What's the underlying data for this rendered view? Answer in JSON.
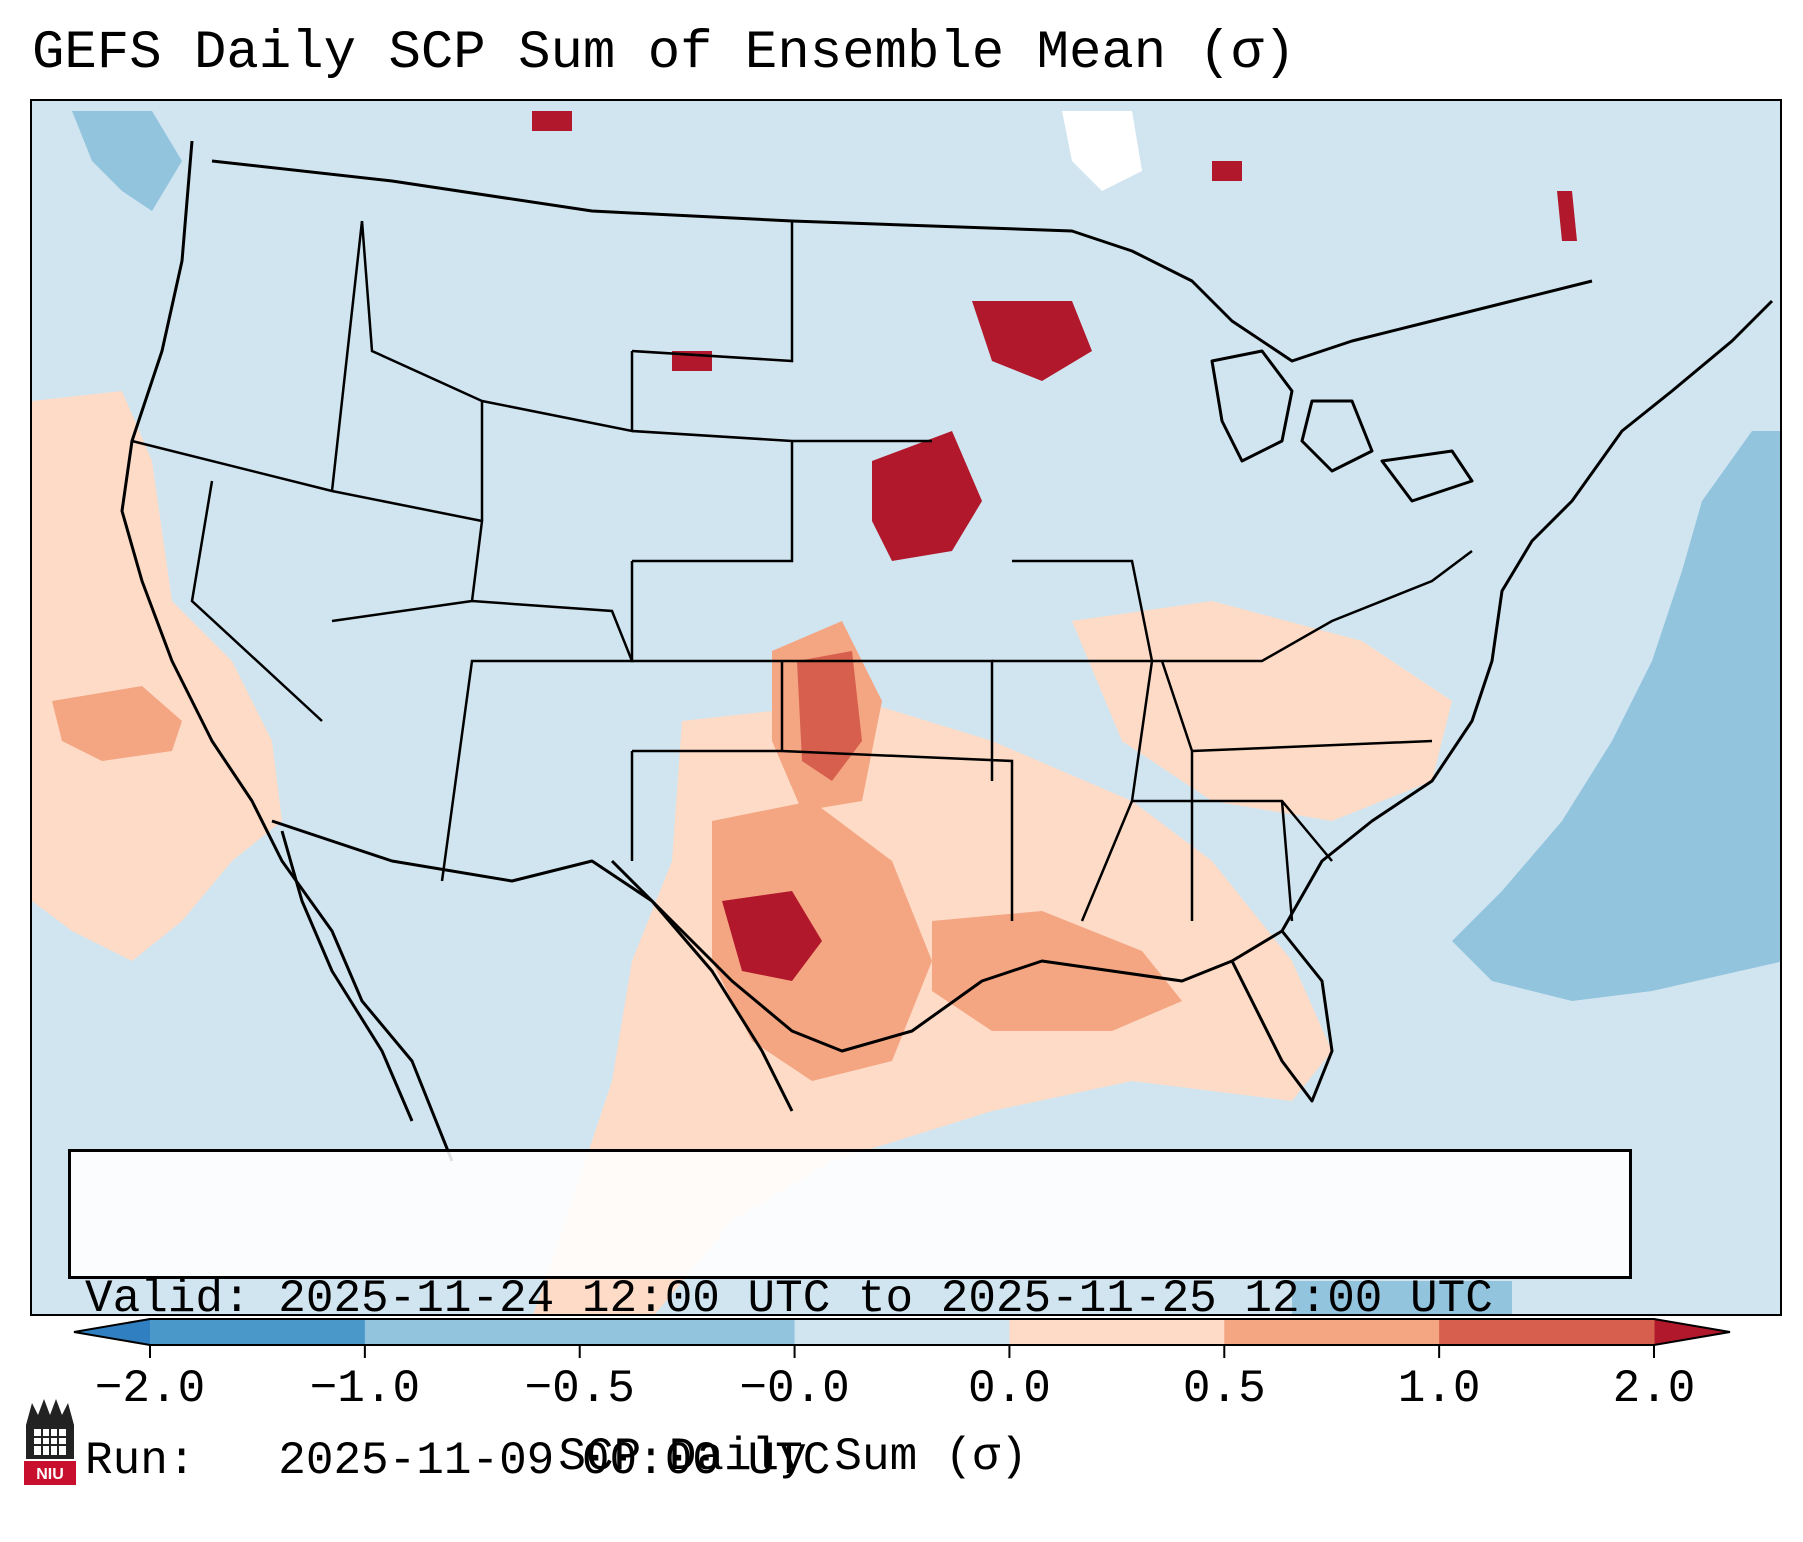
{
  "header": {
    "title": "GEFS Daily SCP Sum of Ensemble Mean (σ)"
  },
  "info_box": {
    "valid": "Valid: 2025-11-24 12:00 UTC to 2025-11-25 12:00 UTC",
    "run": "Run:   2025-11-09 00:00 UTC"
  },
  "colorbar": {
    "label": "SCP Daily Sum (σ)",
    "ticks": [
      "−2.0",
      "−1.0",
      "−0.5",
      "−0.0",
      "0.0",
      "0.5",
      "1.0",
      "2.0"
    ],
    "colors": [
      "#2f7fc1",
      "#4a98ca",
      "#92c4de",
      "#d1e5f0",
      "#fddbc7",
      "#f4a582",
      "#d6604d",
      "#b2182b"
    ],
    "extend": "both"
  },
  "map": {
    "projection": "Lambert Conformal (CONUS)",
    "ocean_color": "#cfe3ef",
    "land_color": "#d1e5f0"
  },
  "logo": {
    "text": "NIU",
    "color": "#c8102e"
  }
}
